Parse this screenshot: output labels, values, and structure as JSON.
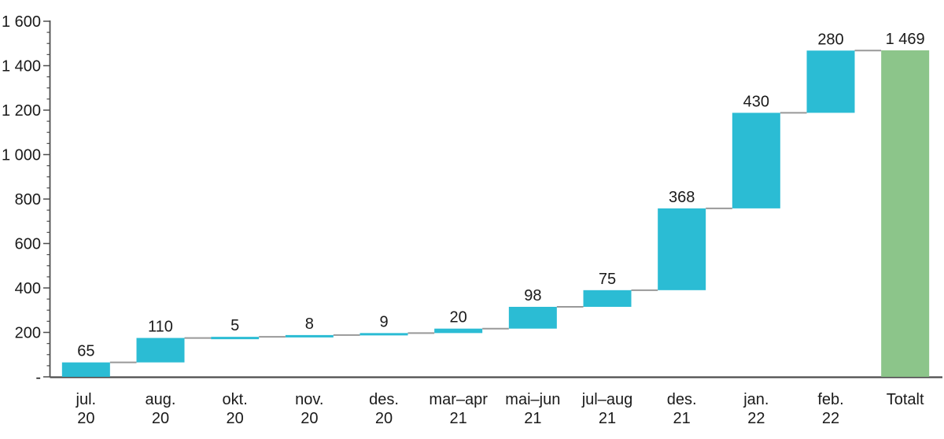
{
  "chart_data": {
    "type": "bar",
    "subtype": "waterfall",
    "title": "",
    "xlabel": "",
    "ylabel": "",
    "legend": null,
    "grid": false,
    "ylim": [
      0,
      1600
    ],
    "y_major_step": 200,
    "y_minor_step": 50,
    "y_ticks": [
      {
        "v": 0,
        "label": "-"
      },
      {
        "v": 200,
        "label": "200"
      },
      {
        "v": 400,
        "label": "400"
      },
      {
        "v": 600,
        "label": "600"
      },
      {
        "v": 800,
        "label": "800"
      },
      {
        "v": 1000,
        "label": "1 000"
      },
      {
        "v": 1200,
        "label": "1 200"
      },
      {
        "v": 1400,
        "label": "1 400"
      },
      {
        "v": 1600,
        "label": "1 600"
      }
    ],
    "steps": [
      {
        "category_lines": [
          "jul.",
          "20"
        ],
        "value": 65,
        "label": "65",
        "is_total": false
      },
      {
        "category_lines": [
          "aug.",
          "20"
        ],
        "value": 110,
        "label": "110",
        "is_total": false
      },
      {
        "category_lines": [
          "okt.",
          "20"
        ],
        "value": 5,
        "label": "5",
        "is_total": false
      },
      {
        "category_lines": [
          "nov.",
          "20"
        ],
        "value": 8,
        "label": "8",
        "is_total": false
      },
      {
        "category_lines": [
          "des.",
          "20"
        ],
        "value": 9,
        "label": "9",
        "is_total": false
      },
      {
        "category_lines": [
          "mar–apr",
          "21"
        ],
        "value": 20,
        "label": "20",
        "is_total": false
      },
      {
        "category_lines": [
          "mai–jun",
          "21"
        ],
        "value": 98,
        "label": "98",
        "is_total": false
      },
      {
        "category_lines": [
          "jul–aug",
          "21"
        ],
        "value": 75,
        "label": "75",
        "is_total": false
      },
      {
        "category_lines": [
          "des.",
          "21"
        ],
        "value": 368,
        "label": "368",
        "is_total": false
      },
      {
        "category_lines": [
          "jan.",
          "22"
        ],
        "value": 430,
        "label": "430",
        "is_total": false
      },
      {
        "category_lines": [
          "feb.",
          "22"
        ],
        "value": 280,
        "label": "280",
        "is_total": false
      },
      {
        "category_lines": [
          "Totalt"
        ],
        "value": 1469,
        "label": "1 469",
        "is_total": true
      }
    ],
    "colors": {
      "delta_bar": "#2bbcd4",
      "total_bar": "#8cc58a",
      "connector": "#999999",
      "axis": "#4d4d4d",
      "text": "#1a1a1a"
    }
  }
}
